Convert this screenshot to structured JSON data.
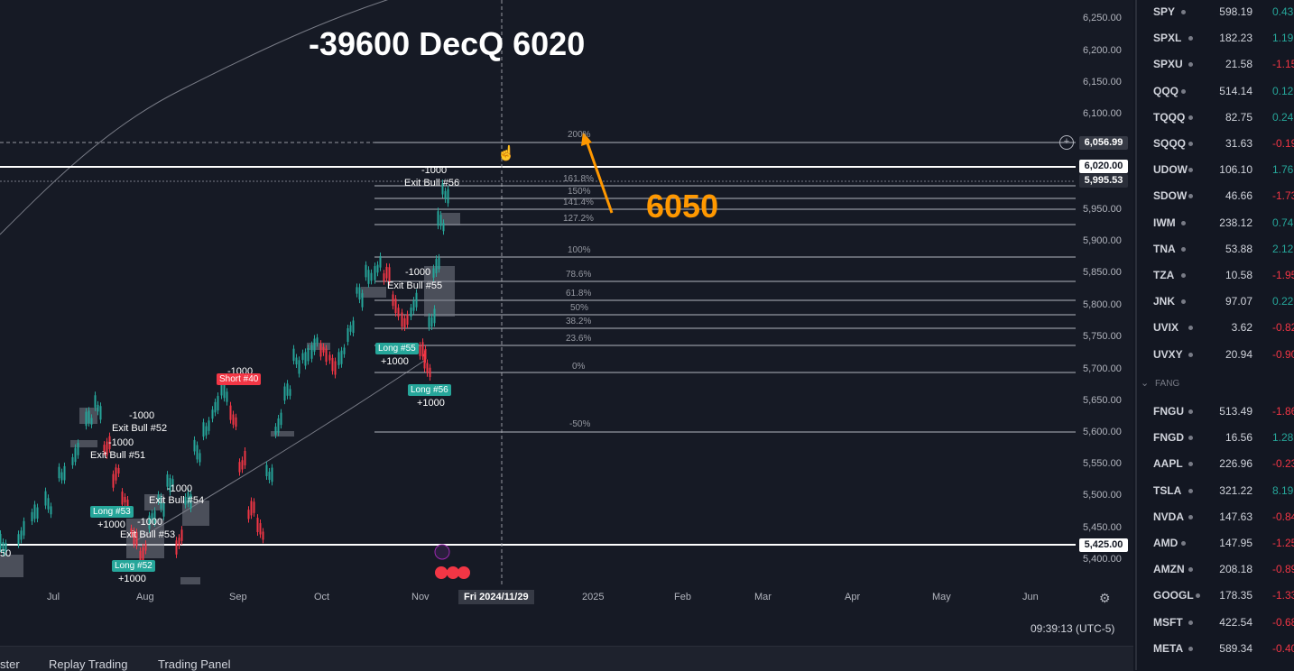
{
  "chart": {
    "overlay_title": "-39600 DecQ 6020",
    "annotation": "6050",
    "y_axis": [
      "6,250.00",
      "6,200.00",
      "6,150.00",
      "6,100.00",
      "6,056.99",
      "6,020.00",
      "5,995.53",
      "5,950.00",
      "5,900.00",
      "5,850.00",
      "5,800.00",
      "5,750.00",
      "5,700.00",
      "5,650.00",
      "5,600.00",
      "5,550.00",
      "5,500.00",
      "5,450.00",
      "5,425.00",
      "5,400.00"
    ],
    "x_axis": [
      "Jul",
      "Aug",
      "Sep",
      "Oct",
      "Nov",
      "2025",
      "Feb",
      "Mar",
      "Apr",
      "May",
      "Jun"
    ],
    "x_cursor": "Fri 2024/11/29",
    "clock": "09:39:13 (UTC-5)",
    "fib_levels": [
      "200%",
      "161.8%",
      "150%",
      "141.4%",
      "127.2%",
      "100%",
      "78.6%",
      "61.8%",
      "50%",
      "38.2%",
      "23.6%",
      "0%",
      "-50%"
    ],
    "trades": {
      "exit56_qty": "-1000",
      "exit56": "Exit Bull #56",
      "exit55_qty": "-1000",
      "exit55": "Exit Bull #55",
      "short40_qty": "-1000",
      "short40": "Short #40",
      "exit52_qty": "-1000",
      "exit52": "Exit Bull #52",
      "exit51_qty": "-1000",
      "exit51": "Exit Bull #51",
      "exit54_qty": "-1000",
      "exit54": "Exit Bull #54",
      "exit53_qty": "-1000",
      "exit53": "Exit Bull #53",
      "long55": "Long #55",
      "long55_qty": "+1000",
      "long56": "Long #56",
      "long56_qty": "+1000",
      "long53": "Long #53",
      "long53_qty": "+1000",
      "long52": "Long #52",
      "long52_qty": "+1000",
      "left_box": "50"
    }
  },
  "bottom_tabs": [
    "ster",
    "Replay Trading",
    "Trading Panel"
  ],
  "watchlist": {
    "section_label": "FANG",
    "rows1": [
      {
        "sym": "SPY",
        "price": "598.19",
        "chg": "0.43",
        "dir": "pos"
      },
      {
        "sym": "SPXL",
        "price": "182.23",
        "chg": "1.19",
        "dir": "pos"
      },
      {
        "sym": "SPXU",
        "price": "21.58",
        "chg": "-1.15",
        "dir": "neg"
      },
      {
        "sym": "QQQ",
        "price": "514.14",
        "chg": "0.12",
        "dir": "pos"
      },
      {
        "sym": "TQQQ",
        "price": "82.75",
        "chg": "0.24",
        "dir": "pos"
      },
      {
        "sym": "SQQQ",
        "price": "31.63",
        "chg": "-0.19",
        "dir": "neg"
      },
      {
        "sym": "UDOW",
        "price": "106.10",
        "chg": "1.76",
        "dir": "pos"
      },
      {
        "sym": "SDOW",
        "price": "46.66",
        "chg": "-1.73",
        "dir": "neg"
      },
      {
        "sym": "IWM",
        "price": "238.12",
        "chg": "0.74",
        "dir": "pos"
      },
      {
        "sym": "TNA",
        "price": "53.88",
        "chg": "2.12",
        "dir": "pos"
      },
      {
        "sym": "TZA",
        "price": "10.58",
        "chg": "-1.95",
        "dir": "neg"
      },
      {
        "sym": "JNK",
        "price": "97.07",
        "chg": "0.22",
        "dir": "pos"
      },
      {
        "sym": "UVIX",
        "price": "3.62",
        "chg": "-0.82",
        "dir": "neg"
      },
      {
        "sym": "UVXY",
        "price": "20.94",
        "chg": "-0.90",
        "dir": "neg"
      }
    ],
    "rows2": [
      {
        "sym": "FNGU",
        "price": "513.49",
        "chg": "-1.86",
        "dir": "neg"
      },
      {
        "sym": "FNGD",
        "price": "16.56",
        "chg": "1.28",
        "dir": "pos"
      },
      {
        "sym": "AAPL",
        "price": "226.96",
        "chg": "-0.23",
        "dir": "neg"
      },
      {
        "sym": "TSLA",
        "price": "321.22",
        "chg": "8.19",
        "dir": "pos"
      },
      {
        "sym": "NVDA",
        "price": "147.63",
        "chg": "-0.84",
        "dir": "neg"
      },
      {
        "sym": "AMD",
        "price": "147.95",
        "chg": "-1.25",
        "dir": "neg"
      },
      {
        "sym": "AMZN",
        "price": "208.18",
        "chg": "-0.89",
        "dir": "neg"
      },
      {
        "sym": "GOOGL",
        "price": "178.35",
        "chg": "-1.33",
        "dir": "neg"
      },
      {
        "sym": "MSFT",
        "price": "422.54",
        "chg": "-0.68",
        "dir": "neg"
      },
      {
        "sym": "META",
        "price": "589.34",
        "chg": "-0.40",
        "dir": "neg"
      }
    ]
  }
}
